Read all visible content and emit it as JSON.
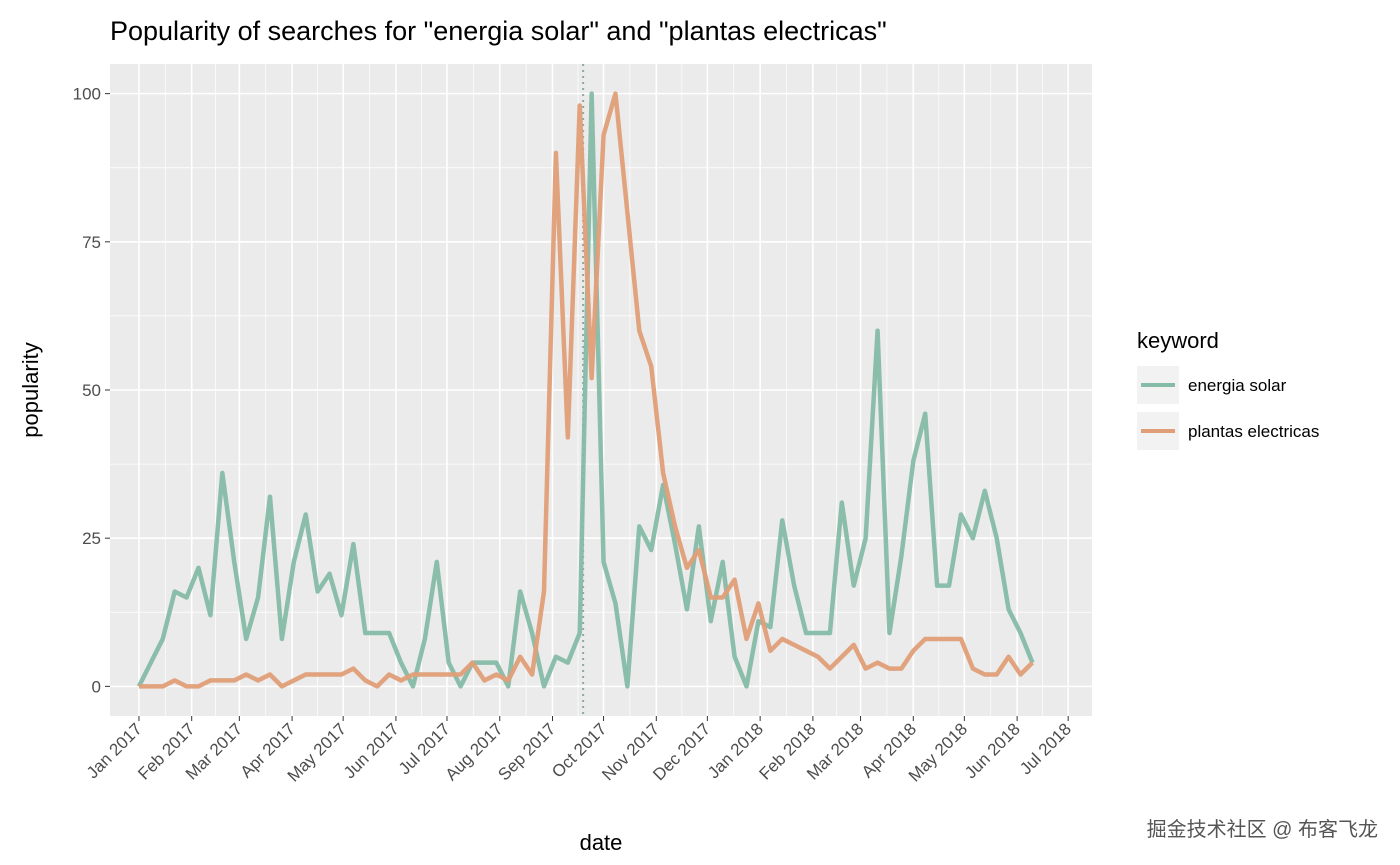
{
  "chart_data": {
    "type": "line",
    "title": "Popularity of searches for \"energia solar\" and \"plantas electricas\"",
    "xlabel": "date",
    "ylabel": "popularity",
    "x_start": "2017-01-01",
    "x_step_days": 7,
    "xlim": [
      "2016-12-15",
      "2018-07-15"
    ],
    "ylim": [
      -5,
      105
    ],
    "yticks": [
      0,
      25,
      50,
      75,
      100
    ],
    "xticks": [
      {
        "date": "2017-01-01",
        "label": "Jan 2017"
      },
      {
        "date": "2017-02-01",
        "label": "Feb 2017"
      },
      {
        "date": "2017-03-01",
        "label": "Mar 2017"
      },
      {
        "date": "2017-04-01",
        "label": "Apr 2017"
      },
      {
        "date": "2017-05-01",
        "label": "May 2017"
      },
      {
        "date": "2017-06-01",
        "label": "Jun 2017"
      },
      {
        "date": "2017-07-01",
        "label": "Jul 2017"
      },
      {
        "date": "2017-08-01",
        "label": "Aug 2017"
      },
      {
        "date": "2017-09-01",
        "label": "Sep 2017"
      },
      {
        "date": "2017-10-01",
        "label": "Oct 2017"
      },
      {
        "date": "2017-11-01",
        "label": "Nov 2017"
      },
      {
        "date": "2017-12-01",
        "label": "Dec 2017"
      },
      {
        "date": "2018-01-01",
        "label": "Jan 2018"
      },
      {
        "date": "2018-02-01",
        "label": "Feb 2018"
      },
      {
        "date": "2018-03-01",
        "label": "Mar 2018"
      },
      {
        "date": "2018-04-01",
        "label": "Apr 2018"
      },
      {
        "date": "2018-05-01",
        "label": "May 2018"
      },
      {
        "date": "2018-06-01",
        "label": "Jun 2018"
      },
      {
        "date": "2018-07-01",
        "label": "Jul 2018"
      }
    ],
    "vline_date": "2017-09-19",
    "grid": true,
    "legend": {
      "title": "keyword",
      "position": "right"
    },
    "series": [
      {
        "name": "energia solar",
        "color": "#86bba8",
        "values": [
          0,
          4,
          8,
          16,
          15,
          20,
          12,
          36,
          21,
          8,
          15,
          32,
          8,
          21,
          29,
          16,
          19,
          12,
          24,
          9,
          9,
          9,
          4,
          0,
          8,
          21,
          4,
          0,
          4,
          4,
          4,
          0,
          16,
          9,
          0,
          5,
          4,
          9,
          100,
          21,
          14,
          0,
          27,
          23,
          34,
          24,
          13,
          27,
          11,
          21,
          5,
          0,
          11,
          10,
          28,
          17,
          9,
          9,
          9,
          31,
          17,
          25,
          60,
          9,
          22,
          38,
          46,
          17,
          17,
          29,
          25,
          33,
          25,
          13,
          9,
          4
        ]
      },
      {
        "name": "plantas electricas",
        "color": "#e09e78",
        "values": [
          0,
          0,
          0,
          1,
          0,
          0,
          1,
          1,
          1,
          2,
          1,
          2,
          0,
          1,
          2,
          2,
          2,
          2,
          3,
          1,
          0,
          2,
          1,
          2,
          2,
          2,
          2,
          2,
          4,
          1,
          2,
          1,
          5,
          2,
          16,
          90,
          42,
          98,
          52,
          93,
          100,
          80,
          60,
          54,
          36,
          27,
          20,
          23,
          15,
          15,
          18,
          8,
          14,
          6,
          8,
          7,
          6,
          5,
          3,
          5,
          7,
          3,
          4,
          3,
          3,
          6,
          8,
          8,
          8,
          8,
          3,
          2,
          2,
          5,
          2,
          4
        ]
      }
    ]
  },
  "watermark": "掘金技术社区 @ 布客飞龙"
}
